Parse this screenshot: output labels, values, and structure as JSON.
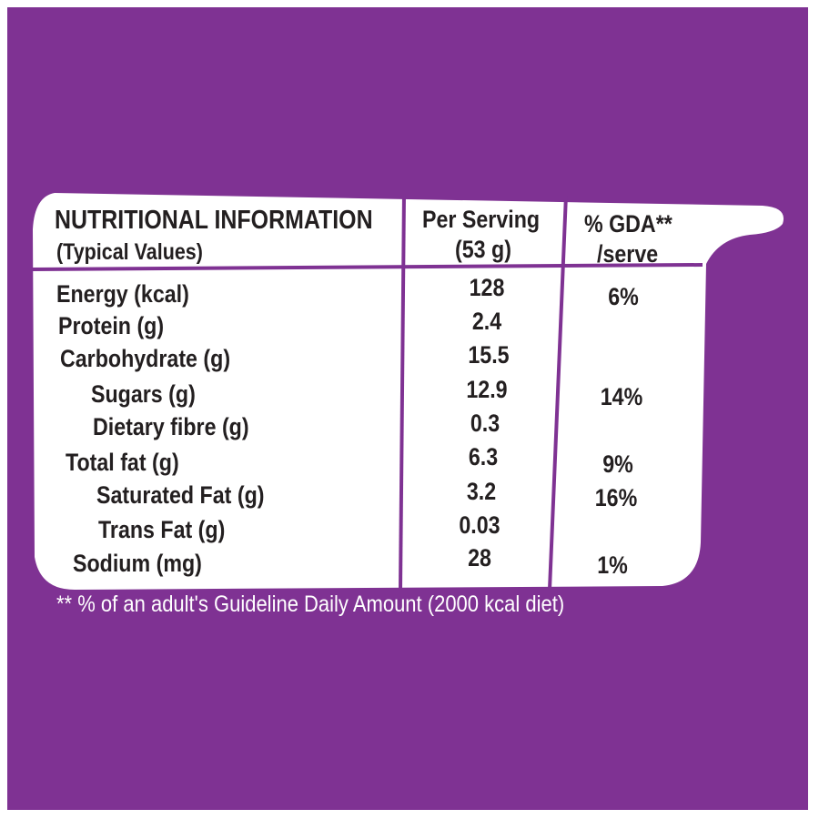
{
  "colors": {
    "background": "#7f3293",
    "panel": "#ffffff",
    "rule": "#7f3293",
    "text": "#231f20",
    "footnote": "#ffffff"
  },
  "table": {
    "title": "NUTRITIONAL INFORMATION",
    "subtitle": "(Typical Values)",
    "col_serving_line1": "Per Serving",
    "col_serving_line2": "(53 g)",
    "col_gda_line1": "% GDA**",
    "col_gda_line2": "/serve",
    "rows": [
      {
        "label": "Energy (kcal)",
        "serving": "128",
        "gda": "6%"
      },
      {
        "label": "Protein (g)",
        "serving": "2.4",
        "gda": ""
      },
      {
        "label": "Carbohydrate (g)",
        "serving": "15.5",
        "gda": ""
      },
      {
        "label": "Sugars (g)",
        "serving": "12.9",
        "gda": "14%"
      },
      {
        "label": "Dietary fibre (g)",
        "serving": "0.3",
        "gda": ""
      },
      {
        "label": "Total fat (g)",
        "serving": "6.3",
        "gda": "9%"
      },
      {
        "label": "Saturated Fat (g)",
        "serving": "3.2",
        "gda": "16%"
      },
      {
        "label": "Trans Fat (g)",
        "serving": "0.03",
        "gda": ""
      },
      {
        "label": "Sodium (mg)",
        "serving": "28",
        "gda": "1%"
      }
    ]
  },
  "footnote": "** % of an adult's Guideline Daily Amount (2000 kcal diet)"
}
